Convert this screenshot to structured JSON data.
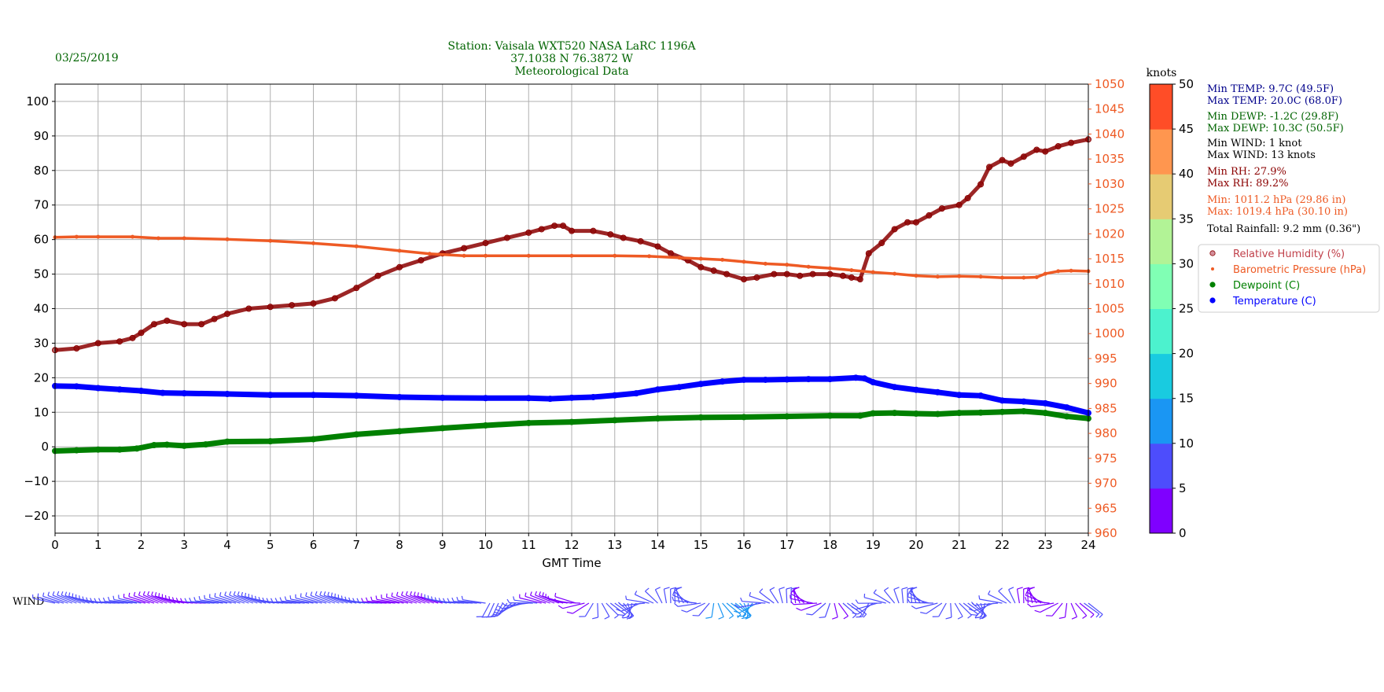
{
  "header": {
    "date": "03/25/2019",
    "station_line1": "Station:  Vaisala WXT520  NASA LaRC 1196A",
    "station_line2": "37.1038 N 76.3872 W",
    "station_line3": "Meteorological Data"
  },
  "stats": [
    {
      "text": "Min TEMP: 9.7C (49.5F)",
      "color": "#00008b"
    },
    {
      "text": "Max TEMP: 20.0C (68.0F)",
      "color": "#00008b"
    },
    {
      "text": "Min DEWP: -1.2C (29.8F)",
      "color": "#006400"
    },
    {
      "text": "Max DEWP: 10.3C (50.5F)",
      "color": "#006400"
    },
    {
      "text": "Min WIND: 1 knot",
      "color": "#000000"
    },
    {
      "text": "Max WIND: 13 knots",
      "color": "#000000"
    },
    {
      "text": "Min RH: 27.9%",
      "color": "#8b0000"
    },
    {
      "text": "Max RH: 89.2%",
      "color": "#8b0000"
    },
    {
      "text": "Min: 1011.2 hPa (29.86 in)",
      "color": "#ee5a24"
    },
    {
      "text": "Max: 1019.4 hPa (30.10 in)",
      "color": "#ee5a24"
    },
    {
      "text": "Total Rainfall: 9.2 mm (0.36\")",
      "color": "#000000"
    }
  ],
  "wind_label": "WIND",
  "colorbar": {
    "title": "knots",
    "ticks": [
      "0",
      "5",
      "10",
      "15",
      "20",
      "25",
      "30",
      "35",
      "40",
      "45",
      "50"
    ],
    "colors": [
      "#7f00ff",
      "#4d4dfc",
      "#1a96f3",
      "#19cbe0",
      "#4cf2ce",
      "#80ffb4",
      "#b2f396",
      "#e6cb73",
      "#ff964f",
      "#ff4d27",
      "#ff0000"
    ]
  },
  "chart_data": {
    "type": "line",
    "xlabel": "GMT Time",
    "x_ticks": [
      "0",
      "1",
      "2",
      "3",
      "4",
      "5",
      "6",
      "7",
      "8",
      "9",
      "10",
      "11",
      "12",
      "13",
      "14",
      "15",
      "16",
      "17",
      "18",
      "19",
      "20",
      "21",
      "22",
      "23",
      "24"
    ],
    "xlim": [
      0,
      24
    ],
    "ylim_left": [
      -25,
      105
    ],
    "yticks_left": [
      "−20",
      "−10",
      "0",
      "10",
      "20",
      "30",
      "40",
      "50",
      "60",
      "70",
      "80",
      "90",
      "100"
    ],
    "ylim_right": [
      960,
      1050
    ],
    "yticks_right": [
      "960",
      "965",
      "970",
      "975",
      "980",
      "985",
      "990",
      "995",
      "1000",
      "1005",
      "1010",
      "1015",
      "1020",
      "1025",
      "1030",
      "1035",
      "1040",
      "1045",
      "1050"
    ],
    "grid": true,
    "legend_position": "right",
    "series": [
      {
        "name": "Relative Humidity (%)",
        "axis": "left",
        "color": "#8b0000",
        "style": "markers",
        "x": [
          0,
          0.5,
          1,
          1.5,
          1.8,
          2,
          2.3,
          2.6,
          3,
          3.4,
          3.7,
          4,
          4.5,
          5,
          5.5,
          6,
          6.5,
          7,
          7.5,
          8,
          8.5,
          9,
          9.5,
          10,
          10.5,
          11,
          11.3,
          11.6,
          11.8,
          12,
          12.5,
          12.9,
          13.2,
          13.6,
          14,
          14.3,
          14.7,
          15,
          15.3,
          15.6,
          16,
          16.3,
          16.7,
          17,
          17.3,
          17.6,
          18,
          18.3,
          18.5,
          18.7,
          18.9,
          19.2,
          19.5,
          19.8,
          20,
          20.3,
          20.6,
          21,
          21.2,
          21.5,
          21.7,
          22,
          22.2,
          22.5,
          22.8,
          23,
          23.3,
          23.6,
          24
        ],
        "y": [
          28,
          28.5,
          30,
          30.5,
          31.5,
          33,
          35.5,
          36.5,
          35.5,
          35.5,
          37,
          38.5,
          40,
          40.5,
          41,
          41.5,
          43,
          46,
          49.5,
          52,
          54,
          56,
          57.5,
          59,
          60.5,
          62,
          63,
          64,
          64,
          62.5,
          62.5,
          61.5,
          60.5,
          59.5,
          58,
          56,
          54,
          52,
          51,
          50,
          48.5,
          49,
          50,
          50,
          49.5,
          50,
          50,
          49.5,
          49,
          48.5,
          56,
          59,
          63,
          65,
          65,
          67,
          69,
          70,
          72,
          76,
          81,
          83,
          82,
          84,
          86,
          85.5,
          87,
          88,
          89
        ]
      },
      {
        "name": "Barometric Pressure (hPa)",
        "axis": "right",
        "color": "#ee5a24",
        "style": "markers",
        "x": [
          0,
          0.5,
          1,
          1.8,
          2.4,
          3,
          4,
          5,
          6,
          7,
          8,
          8.7,
          9.5,
          10,
          11,
          12,
          13,
          13.8,
          14.5,
          15,
          15.5,
          16,
          16.5,
          17,
          17.5,
          18,
          18.5,
          19,
          19.5,
          20,
          20.5,
          21,
          21.5,
          22,
          22.5,
          22.8,
          23,
          23.3,
          23.6,
          24
        ],
        "y": [
          1019.3,
          1019.4,
          1019.4,
          1019.4,
          1019.1,
          1019.1,
          1018.9,
          1018.6,
          1018.1,
          1017.5,
          1016.6,
          1016,
          1015.6,
          1015.6,
          1015.6,
          1015.6,
          1015.6,
          1015.5,
          1015.2,
          1015,
          1014.8,
          1014.4,
          1014,
          1013.8,
          1013.4,
          1013.1,
          1012.7,
          1012.3,
          1012,
          1011.6,
          1011.4,
          1011.5,
          1011.4,
          1011.2,
          1011.2,
          1011.3,
          1012,
          1012.5,
          1012.6,
          1012.5
        ]
      },
      {
        "name": "Dewpoint (C)",
        "axis": "left",
        "color": "#008000",
        "style": "thick",
        "x": [
          0,
          0.5,
          1,
          1.5,
          1.9,
          2.3,
          2.6,
          3,
          3.5,
          4,
          5,
          6,
          7,
          8,
          9,
          10,
          11,
          12,
          13,
          14,
          15,
          16,
          17,
          18,
          18.7,
          19,
          19.5,
          20,
          20.5,
          21,
          21.5,
          22,
          22.5,
          23,
          23.5,
          24
        ],
        "y": [
          -1.2,
          -1,
          -0.8,
          -0.8,
          -0.5,
          0.5,
          0.6,
          0.3,
          0.7,
          1.5,
          1.6,
          2.2,
          3.6,
          4.5,
          5.4,
          6.2,
          6.9,
          7.2,
          7.7,
          8.2,
          8.5,
          8.6,
          8.8,
          9,
          9,
          9.7,
          9.8,
          9.6,
          9.5,
          9.8,
          9.9,
          10.1,
          10.3,
          9.8,
          8.8,
          8.2
        ]
      },
      {
        "name": "Temperature (C)",
        "axis": "left",
        "color": "#0000ff",
        "style": "thick",
        "x": [
          0,
          0.5,
          1,
          1.5,
          2,
          2.5,
          3,
          4,
          5,
          6,
          7,
          8,
          9,
          10,
          11,
          11.5,
          12,
          12.5,
          13,
          13.5,
          14,
          14.5,
          15,
          15.5,
          16,
          16.5,
          17,
          17.5,
          18,
          18.6,
          18.8,
          19,
          19.5,
          20,
          20.5,
          21,
          21.5,
          22,
          22.5,
          23,
          23.5,
          24
        ],
        "y": [
          17.6,
          17.5,
          17,
          16.6,
          16.2,
          15.6,
          15.5,
          15.3,
          15,
          15,
          14.8,
          14.4,
          14.2,
          14.1,
          14.1,
          13.9,
          14.2,
          14.4,
          14.9,
          15.5,
          16.6,
          17.3,
          18.2,
          18.9,
          19.4,
          19.4,
          19.5,
          19.6,
          19.6,
          20,
          19.8,
          18.7,
          17.3,
          16.5,
          15.8,
          15,
          14.8,
          13.4,
          13.1,
          12.6,
          11.4,
          9.8
        ]
      }
    ]
  }
}
